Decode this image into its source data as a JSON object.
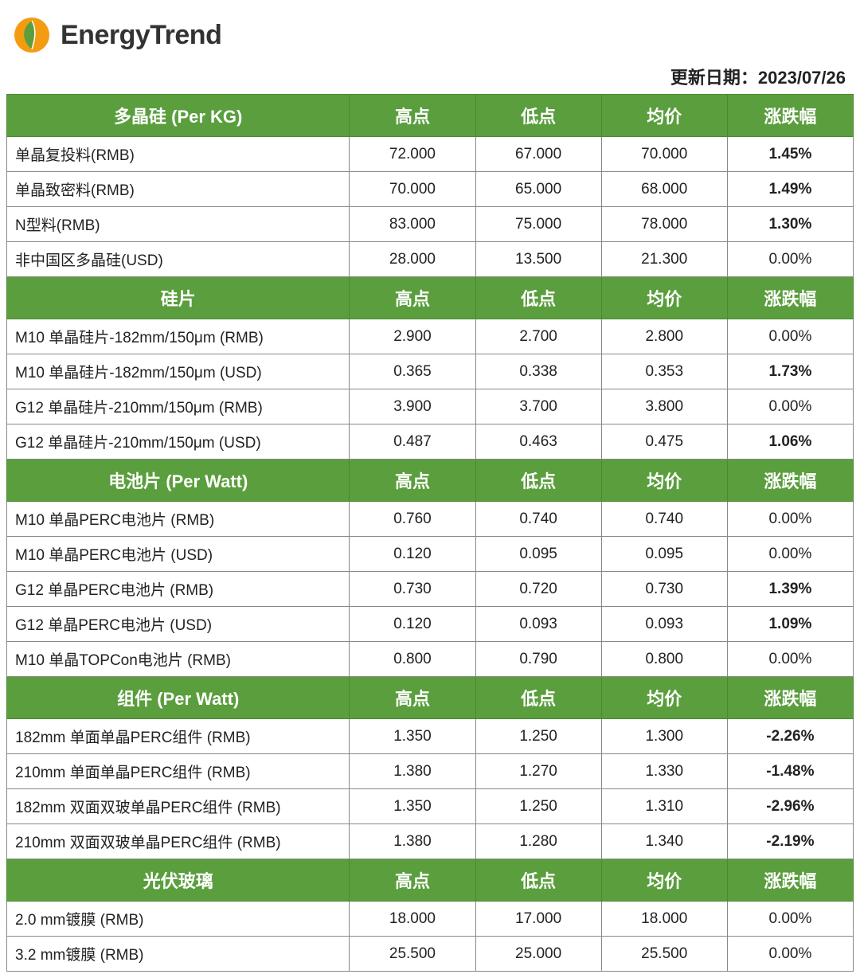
{
  "brand": "EnergyTrend",
  "updateLabel": "更新日期：",
  "updateDate": "2023/07/26",
  "colors": {
    "headerBg": "#5a9e3d",
    "headerBorder": "#4a8a30",
    "cellBorder": "#888888",
    "up": "#d42020",
    "down": "#5aa84a",
    "text": "#222222",
    "background": "#ffffff",
    "logoOrange": "#f39c12",
    "logoGreen": "#5a9e3d"
  },
  "columnHeaders": [
    "高点",
    "低点",
    "均价",
    "涨跌幅"
  ],
  "sections": [
    {
      "title": "多晶硅 (Per KG)",
      "rows": [
        {
          "label": "单晶复投料(RMB)",
          "high": "72.000",
          "low": "67.000",
          "avg": "70.000",
          "chg": "1.45%",
          "dir": "up"
        },
        {
          "label": "单晶致密料(RMB)",
          "high": "70.000",
          "low": "65.000",
          "avg": "68.000",
          "chg": "1.49%",
          "dir": "up"
        },
        {
          "label": "N型料(RMB)",
          "high": "83.000",
          "low": "75.000",
          "avg": "78.000",
          "chg": "1.30%",
          "dir": "up"
        },
        {
          "label": "非中国区多晶硅(USD)",
          "high": "28.000",
          "low": "13.500",
          "avg": "21.300",
          "chg": "0.00%",
          "dir": "flat"
        }
      ]
    },
    {
      "title": "硅片",
      "rows": [
        {
          "label": "M10 单晶硅片-182mm/150μm (RMB)",
          "high": "2.900",
          "low": "2.700",
          "avg": "2.800",
          "chg": "0.00%",
          "dir": "flat"
        },
        {
          "label": "M10 单晶硅片-182mm/150μm (USD)",
          "high": "0.365",
          "low": "0.338",
          "avg": "0.353",
          "chg": "1.73%",
          "dir": "up"
        },
        {
          "label": "G12 单晶硅片-210mm/150μm  (RMB)",
          "high": "3.900",
          "low": "3.700",
          "avg": "3.800",
          "chg": "0.00%",
          "dir": "flat"
        },
        {
          "label": "G12 单晶硅片-210mm/150μm  (USD)",
          "high": "0.487",
          "low": "0.463",
          "avg": "0.475",
          "chg": "1.06%",
          "dir": "up"
        }
      ]
    },
    {
      "title": "电池片 (Per Watt)",
      "rows": [
        {
          "label": "M10 单晶PERC电池片 (RMB)",
          "high": "0.760",
          "low": "0.740",
          "avg": "0.740",
          "chg": "0.00%",
          "dir": "flat"
        },
        {
          "label": "M10 单晶PERC电池片 (USD)",
          "high": "0.120",
          "low": "0.095",
          "avg": "0.095",
          "chg": "0.00%",
          "dir": "flat"
        },
        {
          "label": "G12 单晶PERC电池片 (RMB)",
          "high": "0.730",
          "low": "0.720",
          "avg": "0.730",
          "chg": "1.39%",
          "dir": "up"
        },
        {
          "label": "G12 单晶PERC电池片 (USD)",
          "high": "0.120",
          "low": "0.093",
          "avg": "0.093",
          "chg": "1.09%",
          "dir": "up"
        },
        {
          "label": "M10 单晶TOPCon电池片 (RMB)",
          "high": "0.800",
          "low": "0.790",
          "avg": "0.800",
          "chg": "0.00%",
          "dir": "flat"
        }
      ]
    },
    {
      "title": "组件 (Per Watt)",
      "rows": [
        {
          "label": "182mm 单面单晶PERC组件 (RMB)",
          "high": "1.350",
          "low": "1.250",
          "avg": "1.300",
          "chg": "-2.26%",
          "dir": "down"
        },
        {
          "label": "210mm 单面单晶PERC组件 (RMB)",
          "high": "1.380",
          "low": "1.270",
          "avg": "1.330",
          "chg": "-1.48%",
          "dir": "down"
        },
        {
          "label": "182mm 双面双玻单晶PERC组件 (RMB)",
          "high": "1.350",
          "low": "1.250",
          "avg": "1.310",
          "chg": "-2.96%",
          "dir": "down"
        },
        {
          "label": "210mm 双面双玻单晶PERC组件 (RMB)",
          "high": "1.380",
          "low": "1.280",
          "avg": "1.340",
          "chg": "-2.19%",
          "dir": "down"
        }
      ]
    },
    {
      "title": "光伏玻璃",
      "rows": [
        {
          "label": "2.0 mm镀膜 (RMB)",
          "high": "18.000",
          "low": "17.000",
          "avg": "18.000",
          "chg": "0.00%",
          "dir": "flat"
        },
        {
          "label": "3.2 mm镀膜 (RMB)",
          "high": "25.500",
          "low": "25.000",
          "avg": "25.500",
          "chg": "0.00%",
          "dir": "flat"
        }
      ]
    }
  ]
}
